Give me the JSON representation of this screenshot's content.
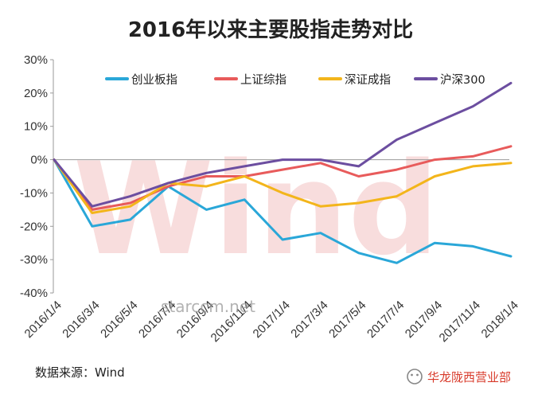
{
  "chart_data": {
    "type": "line",
    "title": "2016年以来主要股指走势对比",
    "x": [
      "2016/1/4",
      "2016/3/4",
      "2016/5/4",
      "2016/7/4",
      "2016/9/4",
      "2016/11/4",
      "2017/1/4",
      "2017/3/4",
      "2017/5/4",
      "2017/7/4",
      "2017/9/4",
      "2017/11/4",
      "2018/1/4"
    ],
    "x_tick_labels": [
      "2016/1/4",
      "2016/3/4",
      "2016/5/4",
      "2016/7/4",
      "2016/9/4",
      "2016/11/4",
      "2017/1/4",
      "2017/3/4",
      "2017/5/4",
      "2017/7/4",
      "2017/9/4",
      "2017/11/4",
      "2018/1/4"
    ],
    "y_unit": "%",
    "ylim": [
      -40,
      30
    ],
    "y_ticks": [
      -40,
      -30,
      -20,
      -10,
      0,
      10,
      20,
      30
    ],
    "y_tick_labels": [
      "-40%",
      "-30%",
      "-20%",
      "-10%",
      "0%",
      "10%",
      "20%",
      "30%"
    ],
    "grid": false,
    "legend_position": "top",
    "series": [
      {
        "name": "创业板指",
        "color": "#2aa7d8",
        "values": [
          0,
          -20,
          -18,
          -8,
          -15,
          -12,
          -24,
          -22,
          -28,
          -31,
          -25,
          -26,
          -29
        ]
      },
      {
        "name": "上证综指",
        "color": "#e85b5b",
        "values": [
          0,
          -15,
          -13,
          -8,
          -5,
          -5,
          -3,
          -1,
          -5,
          -3,
          0,
          1,
          4
        ]
      },
      {
        "name": "深证成指",
        "color": "#f3b51b",
        "values": [
          0,
          -16,
          -14,
          -7,
          -8,
          -5,
          -10,
          -14,
          -13,
          -11,
          -5,
          -2,
          -1
        ]
      },
      {
        "name": "沪深300",
        "color": "#6c4ea0",
        "values": [
          0,
          -14,
          -11,
          -7,
          -4,
          -2,
          0,
          0,
          -2,
          6,
          11,
          16,
          23
        ]
      }
    ]
  },
  "footer": {
    "source": "数据来源：Wind",
    "brand": "华龙陇西营业部"
  },
  "watermark": {
    "logo_text": "Wind",
    "site": "starccm.net"
  }
}
